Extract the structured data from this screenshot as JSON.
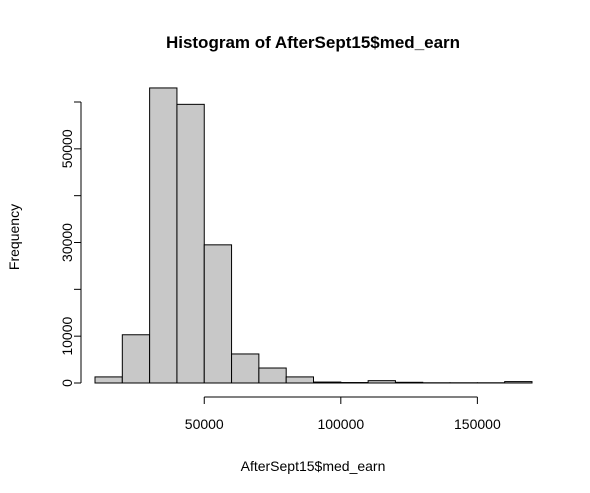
{
  "chart_data": {
    "type": "bar",
    "subtype": "histogram",
    "title": "Histogram of AfterSept15$med_earn",
    "xlabel": "AfterSept15$med_earn",
    "ylabel": "Frequency",
    "bin_edges": [
      10000,
      20000,
      30000,
      40000,
      50000,
      60000,
      70000,
      80000,
      90000,
      100000,
      110000,
      120000,
      130000,
      140000,
      150000,
      160000,
      170000
    ],
    "values": [
      1300,
      10300,
      63000,
      59500,
      29500,
      6200,
      3200,
      1300,
      200,
      100,
      500,
      150,
      50,
      50,
      50,
      300
    ],
    "xlim": [
      10000,
      170000
    ],
    "ylim": [
      0,
      60000
    ],
    "x_ticks": [
      50000,
      100000,
      150000
    ],
    "x_tick_labels": [
      "50000",
      "100000",
      "150000"
    ],
    "y_ticks": [
      0,
      10000,
      30000,
      50000
    ],
    "y_tick_labels": [
      "0",
      "10000",
      "30000",
      "50000"
    ],
    "y_axis_max_tick": 60000,
    "bar_fill": "#c8c8c8",
    "bar_stroke": "#000000",
    "grid": false,
    "legend": "none"
  }
}
